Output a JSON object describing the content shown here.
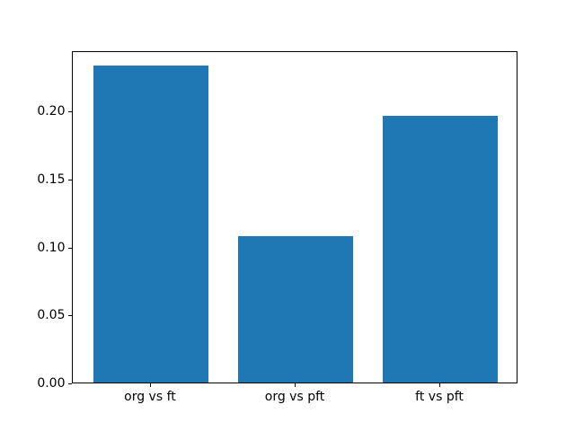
{
  "figure": {
    "background": "#ffffff",
    "axis_color": "#000000"
  },
  "chart_data": {
    "type": "bar",
    "categories": [
      "org vs ft",
      "org vs pft",
      "ft vs pft"
    ],
    "values": [
      0.233,
      0.108,
      0.196
    ],
    "ylim": [
      0,
      0.2445
    ],
    "yticks": [
      0.0,
      0.05,
      0.1,
      0.15,
      0.2
    ],
    "ytick_labels": [
      "0.00",
      "0.05",
      "0.10",
      "0.15",
      "0.20"
    ],
    "bar_color": "#1f77b4",
    "bar_width_fraction": 0.8,
    "grid": false
  }
}
